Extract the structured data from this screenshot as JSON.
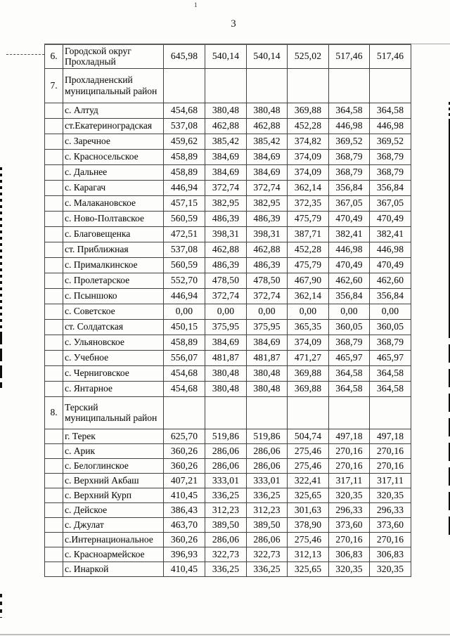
{
  "page": {
    "number": "3",
    "top_mark": "1"
  },
  "table": {
    "rows": [
      {
        "num": "6.",
        "name": "Городской округ Прохладный",
        "values": [
          "645,98",
          "540,14",
          "540,14",
          "525,02",
          "517,46",
          "517,46"
        ]
      },
      {
        "num": "7.",
        "name": "Прохладненский муниципальный район",
        "values": [
          "",
          "",
          "",
          "",
          "",
          ""
        ]
      },
      {
        "num": "",
        "name": "с. Алтуд",
        "values": [
          "454,68",
          "380,48",
          "380,48",
          "369,88",
          "364,58",
          "364,58"
        ]
      },
      {
        "num": "",
        "name": "ст.Екатериноградская",
        "values": [
          "537,08",
          "462,88",
          "462,88",
          "452,28",
          "446,98",
          "446,98"
        ]
      },
      {
        "num": "",
        "name": "с. Заречное",
        "values": [
          "459,62",
          "385,42",
          "385,42",
          "374,82",
          "369,52",
          "369,52"
        ]
      },
      {
        "num": "",
        "name": "с. Красносельское",
        "values": [
          "458,89",
          "384,69",
          "384,69",
          "374,09",
          "368,79",
          "368,79"
        ]
      },
      {
        "num": "",
        "name": "с. Дальнее",
        "values": [
          "458,89",
          "384,69",
          "384,69",
          "374,09",
          "368,79",
          "368,79"
        ]
      },
      {
        "num": "",
        "name": "с. Карагач",
        "values": [
          "446,94",
          "372,74",
          "372,74",
          "362,14",
          "356,84",
          "356,84"
        ]
      },
      {
        "num": "",
        "name": "с. Малакановское",
        "values": [
          "457,15",
          "382,95",
          "382,95",
          "372,35",
          "367,05",
          "367,05"
        ]
      },
      {
        "num": "",
        "name": "с. Ново-Полтавское",
        "values": [
          "560,59",
          "486,39",
          "486,39",
          "475,79",
          "470,49",
          "470,49"
        ]
      },
      {
        "num": "",
        "name": "с. Благовещенка",
        "values": [
          "472,51",
          "398,31",
          "398,31",
          "387,71",
          "382,41",
          "382,41"
        ]
      },
      {
        "num": "",
        "name": "ст. Приближная",
        "values": [
          "537,08",
          "462,88",
          "462,88",
          "452,28",
          "446,98",
          "446,98"
        ]
      },
      {
        "num": "",
        "name": "с. Прималкинское",
        "values": [
          "560,59",
          "486,39",
          "486,39",
          "475,79",
          "470,49",
          "470,49"
        ]
      },
      {
        "num": "",
        "name": "с. Пролетарское",
        "values": [
          "552,70",
          "478,50",
          "478,50",
          "467,90",
          "462,60",
          "462,60"
        ]
      },
      {
        "num": "",
        "name": "с. Псыншоко",
        "values": [
          "446,94",
          "372,74",
          "372,74",
          "362,14",
          "356,84",
          "356,84"
        ]
      },
      {
        "num": "",
        "name": "с. Советское",
        "values": [
          "0,00",
          "0,00",
          "0,00",
          "0,00",
          "0,00",
          "0,00"
        ]
      },
      {
        "num": "",
        "name": "ст. Солдатская",
        "values": [
          "450,15",
          "375,95",
          "375,95",
          "365,35",
          "360,05",
          "360,05"
        ]
      },
      {
        "num": "",
        "name": "с. Ульяновское",
        "values": [
          "458,89",
          "384,69",
          "384,69",
          "374,09",
          "368,79",
          "368,79"
        ]
      },
      {
        "num": "",
        "name": "с. Учебное",
        "values": [
          "556,07",
          "481,87",
          "481,87",
          "471,27",
          "465,97",
          "465,97"
        ]
      },
      {
        "num": "",
        "name": "с. Черниговское",
        "values": [
          "454,68",
          "380,48",
          "380,48",
          "369,88",
          "364,58",
          "364,58"
        ]
      },
      {
        "num": "",
        "name": "с. Янтарное",
        "values": [
          "454,68",
          "380,48",
          "380,48",
          "369,88",
          "364,58",
          "364,58"
        ]
      },
      {
        "num": "8.",
        "name": "Терский муниципальный район",
        "values": [
          "",
          "",
          "",
          "",
          "",
          ""
        ]
      },
      {
        "num": "",
        "name": "г. Терек",
        "values": [
          "625,70",
          "519,86",
          "519,86",
          "504,74",
          "497,18",
          "497,18"
        ]
      },
      {
        "num": "",
        "name": "с. Арик",
        "values": [
          "360,26",
          "286,06",
          "286,06",
          "275,46",
          "270,16",
          "270,16"
        ]
      },
      {
        "num": "",
        "name": "с. Белоглинское",
        "values": [
          "360,26",
          "286,06",
          "286,06",
          "275,46",
          "270,16",
          "270,16"
        ]
      },
      {
        "num": "",
        "name": "с. Верхний Акбаш",
        "values": [
          "407,21",
          "333,01",
          "333,01",
          "322,41",
          "317,11",
          "317,11"
        ]
      },
      {
        "num": "",
        "name": "с. Верхний Курп",
        "values": [
          "410,45",
          "336,25",
          "336,25",
          "325,65",
          "320,35",
          "320,35"
        ]
      },
      {
        "num": "",
        "name": "с. Дейское",
        "values": [
          "386,43",
          "312,23",
          "312,23",
          "301,63",
          "296,33",
          "296,33"
        ]
      },
      {
        "num": "",
        "name": "с. Джулат",
        "values": [
          "463,70",
          "389,50",
          "389,50",
          "378,90",
          "373,60",
          "373,60"
        ]
      },
      {
        "num": "",
        "name": "с.Интернациональное",
        "values": [
          "360,26",
          "286,06",
          "286,06",
          "275,46",
          "270,16",
          "270,16"
        ]
      },
      {
        "num": "",
        "name": "с. Красноармейское",
        "values": [
          "396,93",
          "322,73",
          "322,73",
          "312,13",
          "306,83",
          "306,83"
        ]
      },
      {
        "num": "",
        "name": "с. Инаркой",
        "values": [
          "410,45",
          "336,25",
          "336,25",
          "325,65",
          "320,35",
          "320,35"
        ]
      }
    ]
  }
}
